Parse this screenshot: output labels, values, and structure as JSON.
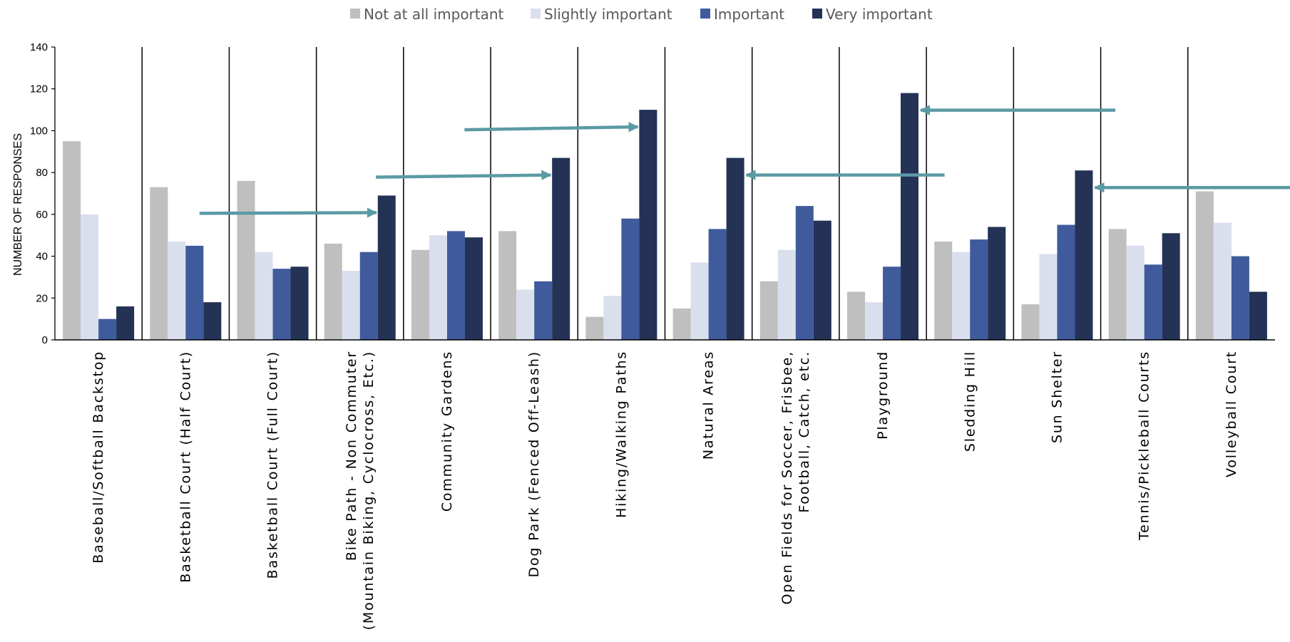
{
  "chart_data": {
    "type": "bar",
    "ylabel": "NUMBER OF RESPONSES",
    "xlabel": "",
    "ylim": [
      0,
      140
    ],
    "yticks": [
      0,
      20,
      40,
      60,
      80,
      100,
      120,
      140
    ],
    "legend_position": "top-center",
    "grid": false,
    "categories": [
      [
        "Baseball/Softball Backstop"
      ],
      [
        "Basketball Court (Half Court)"
      ],
      [
        "Basketball Court (Full Court)"
      ],
      [
        "Bike Path - Non Commuter",
        "(Mountain Biking, Cyclocross, Etc.)"
      ],
      [
        "Community Gardens"
      ],
      [
        "Dog Park (Fenced Off-Leash)"
      ],
      [
        "Hiking/Walking Paths"
      ],
      [
        "Natural Areas"
      ],
      [
        "Open Fields for Soccer, Frisbee,",
        "Football, Catch, etc."
      ],
      [
        "Playground"
      ],
      [
        "Sledding Hill"
      ],
      [
        "Sun Shelter"
      ],
      [
        "Tennis/Pickleball Courts"
      ],
      [
        "Volleyball Court"
      ]
    ],
    "series": [
      {
        "name": "Not at all important",
        "color": "#bfbfbf",
        "values": [
          95,
          73,
          76,
          46,
          43,
          52,
          11,
          15,
          28,
          23,
          47,
          17,
          53,
          71
        ]
      },
      {
        "name": "Slightly important",
        "color": "#dadfee",
        "values": [
          60,
          47,
          42,
          33,
          50,
          24,
          21,
          37,
          43,
          18,
          42,
          41,
          45,
          56
        ]
      },
      {
        "name": "Important",
        "color": "#3f5b9c",
        "values": [
          10,
          45,
          34,
          42,
          52,
          28,
          58,
          53,
          64,
          35,
          48,
          55,
          36,
          40
        ]
      },
      {
        "name": "Very important",
        "color": "#243256",
        "values": [
          16,
          18,
          35,
          69,
          49,
          87,
          110,
          87,
          57,
          118,
          54,
          81,
          51,
          23
        ]
      }
    ],
    "annotations": {
      "type": "arrows",
      "color": "#5b9aa5",
      "pointing_to": [
        {
          "category": "Bike Path - Non Commuter",
          "series": "Very important",
          "value": 69
        },
        {
          "category": "Dog Park (Fenced Off-Leash)",
          "series": "Very important",
          "value": 87
        },
        {
          "category": "Hiking/Walking Paths",
          "series": "Very important",
          "value": 110
        },
        {
          "category": "Natural Areas",
          "series": "Very important",
          "value": 87
        },
        {
          "category": "Playground",
          "series": "Very important",
          "value": 118
        },
        {
          "category": "Sun Shelter",
          "series": "Very important",
          "value": 81
        }
      ]
    }
  }
}
